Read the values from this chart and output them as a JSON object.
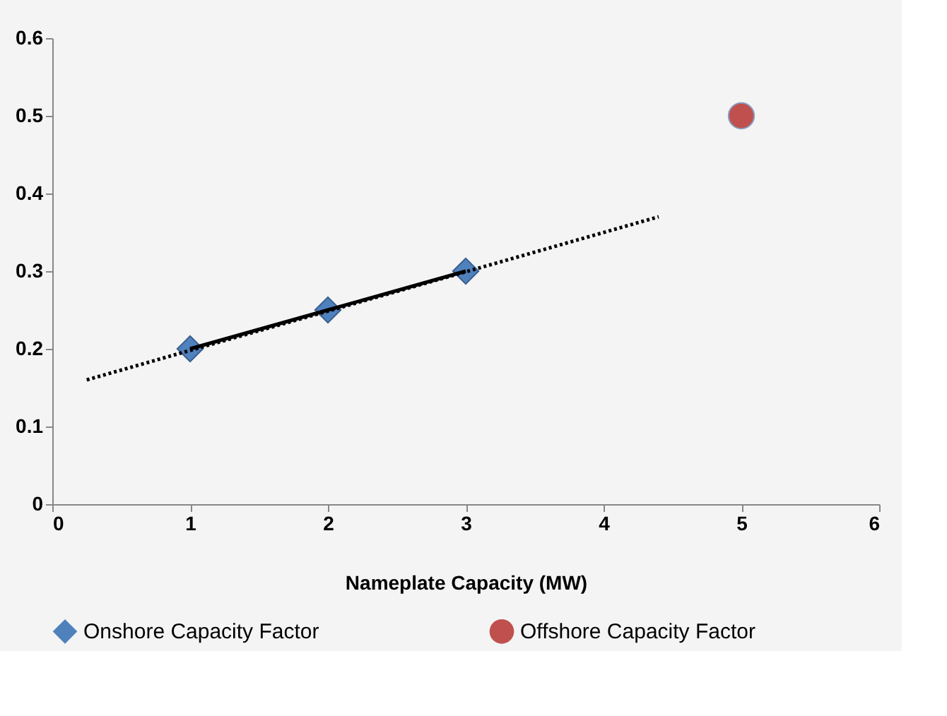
{
  "chart_data": {
    "type": "scatter",
    "xlabel": "Nameplate Capacity (MW)",
    "xlim": [
      0,
      6
    ],
    "xticks": [
      0,
      1,
      2,
      3,
      4,
      5,
      6
    ],
    "ylim": [
      0,
      0.6
    ],
    "yticks": [
      0,
      0.1,
      0.2,
      0.3,
      0.4,
      0.5,
      0.6
    ],
    "grid": false,
    "legend": "bottom",
    "series": [
      {
        "name": "Onshore Capacity Factor",
        "marker": "diamond",
        "color": "#4f81bd",
        "x": [
          1,
          2,
          3
        ],
        "values": [
          0.2,
          0.25,
          0.3
        ]
      },
      {
        "name": "Offshore Capacity Factor",
        "marker": "circle",
        "color": "#c0504d",
        "x": [
          5
        ],
        "values": [
          0.5
        ]
      },
      {
        "type": "line",
        "line_style": "solid",
        "color": "#000000",
        "x": [
          1,
          2,
          3
        ],
        "values": [
          0.2,
          0.25,
          0.3
        ]
      },
      {
        "type": "line",
        "line_style": "dotted",
        "color": "#000000",
        "x": [
          0.25,
          4.4
        ],
        "values": [
          0.16,
          0.37
        ]
      }
    ]
  }
}
